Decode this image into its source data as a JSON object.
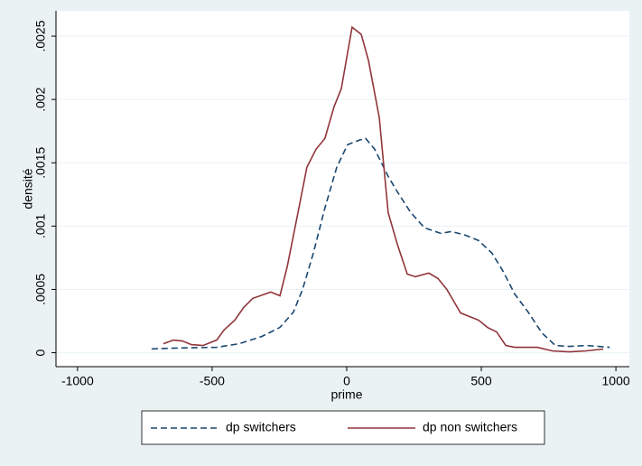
{
  "chart_data": {
    "type": "line",
    "x_label": "prime",
    "y_label": "densité",
    "xlim": [
      -1080,
      1050
    ],
    "xticks": [
      -1000,
      -500,
      0,
      500,
      1000
    ],
    "ylim": [
      -0.00011,
      0.0027
    ],
    "yticks": [
      0,
      {
        "value": 0.0005,
        "label": ".0005"
      },
      {
        "value": 0.001,
        "label": ".001"
      },
      {
        "value": 0.0015,
        "label": ".0015"
      },
      {
        "value": 0.002,
        "label": ".002"
      },
      {
        "value": 0.0025,
        "label": ".0025"
      }
    ],
    "grid": true,
    "legend": "bottom",
    "series": [
      {
        "name": "dp switchers",
        "color": "#1a476f",
        "linestyle": "dashed",
        "x": [
          -725,
          -651,
          -483,
          -399,
          -315,
          -248,
          -198,
          -164,
          -124,
          -81,
          -37,
          3,
          47,
          70,
          104,
          154,
          188,
          238,
          289,
          349,
          389,
          440,
          490,
          540,
          581,
          624,
          674,
          725,
          775,
          826,
          893,
          977
        ],
        "values": [
          3e-05,
          3.6e-05,
          4.3e-05,
          7.1e-05,
          0.000129,
          0.0002,
          0.000321,
          0.0005,
          0.000786,
          0.001143,
          0.001464,
          0.001643,
          0.001679,
          0.001693,
          0.001607,
          0.001393,
          0.001271,
          0.001107,
          0.000986,
          0.000943,
          0.000957,
          0.000929,
          0.000886,
          0.000786,
          0.000643,
          0.000464,
          0.000321,
          0.000157,
          5.7e-05,
          5e-05,
          5.7e-05,
          4.3e-05
        ]
      },
      {
        "name": "dp non switchers",
        "color": "#90353b",
        "linestyle": "solid",
        "x": [
          -681,
          -644,
          -611,
          -577,
          -534,
          -483,
          -456,
          -416,
          -383,
          -349,
          -282,
          -248,
          -221,
          -181,
          -148,
          -114,
          -81,
          -47,
          -20,
          20,
          54,
          81,
          121,
          154,
          188,
          225,
          255,
          305,
          339,
          372,
          423,
          456,
          490,
          523,
          557,
          591,
          624,
          658,
          708,
          765,
          826,
          886,
          953
        ],
        "values": [
          7.1e-05,
          0.0001,
          9.3e-05,
          6.4e-05,
          5.7e-05,
          0.0001,
          0.000179,
          0.000257,
          0.000357,
          0.000429,
          0.000479,
          0.00045,
          0.000679,
          0.001107,
          0.001464,
          0.001607,
          0.001693,
          0.001943,
          0.002086,
          0.002571,
          0.002514,
          0.002307,
          0.001857,
          0.001107,
          0.000857,
          0.000621,
          0.0006,
          0.000629,
          0.000586,
          0.0005,
          0.000314,
          0.000286,
          0.000257,
          0.0002,
          0.000164,
          5.7e-05,
          4.3e-05,
          4.3e-05,
          4.3e-05,
          1.4e-05,
          7e-06,
          1.4e-05,
          2.9e-05
        ]
      }
    ]
  }
}
